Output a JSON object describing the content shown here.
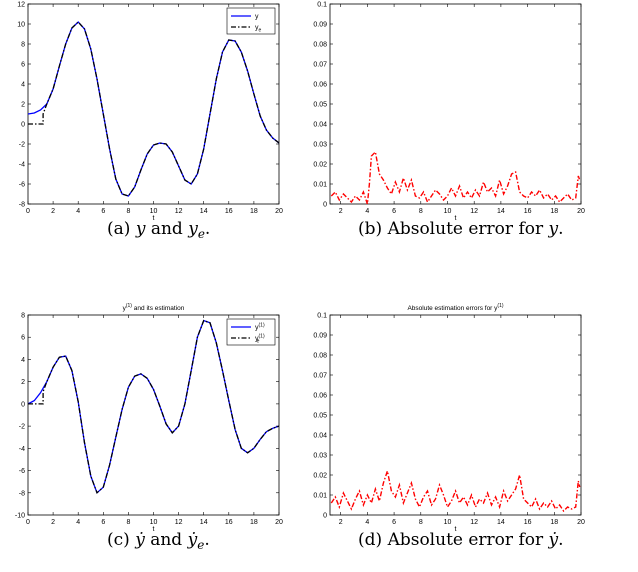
{
  "chart_data": [
    {
      "type": "line",
      "title": "",
      "xlabel": "t",
      "ylabel": "",
      "xlim": [
        0,
        20
      ],
      "ylim": [
        -8,
        12
      ],
      "xticks": [
        "0",
        "2",
        "4",
        "6",
        "8",
        "10",
        "12",
        "14",
        "16",
        "18",
        "20"
      ],
      "yticks": [
        "-8",
        "-6",
        "-4",
        "-2",
        "0",
        "2",
        "4",
        "6",
        "8",
        "10",
        "12"
      ],
      "legend": {
        "position": "top-right",
        "entries": [
          "y",
          "ye"
        ]
      },
      "series": [
        {
          "name": "y",
          "style": "solid",
          "color": "#0000ff",
          "x": [
            0,
            0.5,
            1,
            1.5,
            2,
            2.5,
            3,
            3.5,
            4,
            4.5,
            5,
            5.5,
            6,
            6.5,
            7,
            7.5,
            8,
            8.5,
            9,
            9.5,
            10,
            10.5,
            11,
            11.5,
            12,
            12.5,
            13,
            13.5,
            14,
            14.5,
            15,
            15.5,
            16,
            16.5,
            17,
            17.5,
            18,
            18.5,
            19,
            19.5,
            20
          ],
          "y": [
            1.0,
            1.1,
            1.4,
            2.0,
            3.5,
            5.8,
            8.0,
            9.6,
            10.2,
            9.5,
            7.5,
            4.5,
            1.0,
            -2.5,
            -5.5,
            -7.0,
            -7.2,
            -6.3,
            -4.6,
            -3.0,
            -2.1,
            -1.9,
            -2.0,
            -2.8,
            -4.2,
            -5.6,
            -6.0,
            -5.0,
            -2.5,
            1.0,
            4.5,
            7.2,
            8.4,
            8.3,
            7.2,
            5.3,
            3.0,
            0.8,
            -0.6,
            -1.4,
            -1.9
          ]
        },
        {
          "name": "ye",
          "style": "dashdot",
          "color": "#000000",
          "x": [
            0,
            0.5,
            1,
            1.2,
            1.2,
            1.5,
            2,
            2.5,
            3,
            3.5,
            4,
            4.5,
            5,
            5.5,
            6,
            6.5,
            7,
            7.5,
            8,
            8.5,
            9,
            9.5,
            10,
            10.5,
            11,
            11.5,
            12,
            12.5,
            13,
            13.5,
            14,
            14.5,
            15,
            15.5,
            16,
            16.5,
            17,
            17.5,
            18,
            18.5,
            19,
            19.5,
            20
          ],
          "y": [
            0,
            0,
            0,
            0,
            1.0,
            2.0,
            3.5,
            5.8,
            8.0,
            9.6,
            10.2,
            9.5,
            7.5,
            4.5,
            1.0,
            -2.5,
            -5.5,
            -7.0,
            -7.2,
            -6.3,
            -4.6,
            -3.0,
            -2.1,
            -1.9,
            -2.0,
            -2.8,
            -4.2,
            -5.6,
            -6.0,
            -5.0,
            -2.5,
            1.0,
            4.5,
            7.2,
            8.4,
            8.3,
            7.2,
            5.3,
            3.0,
            0.8,
            -0.6,
            -1.4,
            -1.9
          ]
        }
      ]
    },
    {
      "type": "line",
      "title": "",
      "xlabel": "t",
      "ylabel": "",
      "xlim": [
        1.2,
        20
      ],
      "ylim": [
        0,
        0.1
      ],
      "xticks": [
        "2",
        "4",
        "6",
        "8",
        "10",
        "12",
        "14",
        "16",
        "18",
        "20"
      ],
      "yticks": [
        "0",
        "0.01",
        "0.02",
        "0.03",
        "0.04",
        "0.05",
        "0.06",
        "0.07",
        "0.08",
        "0.09",
        "0.1"
      ],
      "series": [
        {
          "name": "",
          "style": "dashdot",
          "color": "#ff0000",
          "x": [
            1.3,
            1.6,
            1.9,
            2.2,
            2.5,
            2.8,
            3.1,
            3.4,
            3.7,
            4.0,
            4.15,
            4.3,
            4.6,
            4.9,
            5.2,
            5.5,
            5.8,
            6.1,
            6.4,
            6.7,
            7.0,
            7.3,
            7.6,
            7.9,
            8.2,
            8.5,
            8.8,
            9.1,
            9.4,
            9.7,
            10.0,
            10.3,
            10.6,
            10.9,
            11.2,
            11.5,
            11.8,
            12.1,
            12.4,
            12.7,
            13.0,
            13.3,
            13.6,
            13.9,
            14.2,
            14.5,
            14.8,
            15.1,
            15.4,
            15.7,
            16.0,
            16.3,
            16.6,
            16.9,
            17.2,
            17.5,
            17.8,
            18.1,
            18.4,
            18.7,
            19.0,
            19.3,
            19.6,
            19.8,
            19.9
          ],
          "y": [
            0.004,
            0.006,
            0.002,
            0.005,
            0.003,
            0.001,
            0.004,
            0.002,
            0.006,
            0.0,
            0.01,
            0.024,
            0.026,
            0.015,
            0.012,
            0.008,
            0.005,
            0.011,
            0.006,
            0.013,
            0.007,
            0.012,
            0.004,
            0.003,
            0.006,
            0.001,
            0.004,
            0.007,
            0.005,
            0.002,
            0.004,
            0.008,
            0.004,
            0.009,
            0.003,
            0.006,
            0.003,
            0.007,
            0.004,
            0.011,
            0.006,
            0.008,
            0.004,
            0.012,
            0.005,
            0.009,
            0.015,
            0.016,
            0.006,
            0.004,
            0.003,
            0.006,
            0.004,
            0.007,
            0.003,
            0.005,
            0.002,
            0.004,
            0.001,
            0.003,
            0.005,
            0.002,
            0.003,
            0.014,
            0.012
          ]
        }
      ]
    },
    {
      "type": "line",
      "title": "y(1) and its estimation",
      "xlabel": "t",
      "ylabel": "",
      "xlim": [
        0,
        20
      ],
      "ylim": [
        -10,
        8
      ],
      "xticks": [
        "0",
        "2",
        "4",
        "6",
        "8",
        "10",
        "12",
        "14",
        "16",
        "18",
        "20"
      ],
      "yticks": [
        "-10",
        "-8",
        "-6",
        "-4",
        "-2",
        "0",
        "2",
        "4",
        "6",
        "8"
      ],
      "legend": {
        "position": "top-right",
        "entries": [
          "y(1)",
          "ye(1)"
        ]
      },
      "series": [
        {
          "name": "y(1)",
          "style": "solid",
          "color": "#0000ff",
          "x": [
            0,
            0.5,
            1,
            1.5,
            2,
            2.5,
            3,
            3.5,
            4,
            4.5,
            5,
            5.5,
            6,
            6.5,
            7,
            7.5,
            8,
            8.5,
            9,
            9.5,
            10,
            10.5,
            11,
            11.5,
            12,
            12.5,
            13,
            13.5,
            14,
            14.5,
            15,
            15.5,
            16,
            16.5,
            17,
            17.5,
            18,
            18.5,
            19,
            19.5,
            20
          ],
          "y": [
            0,
            0.3,
            1.0,
            2.0,
            3.3,
            4.2,
            4.3,
            3.0,
            0.2,
            -3.5,
            -6.5,
            -8.0,
            -7.5,
            -5.5,
            -3.0,
            -0.5,
            1.5,
            2.5,
            2.7,
            2.3,
            1.3,
            -0.2,
            -1.8,
            -2.6,
            -2.0,
            0.0,
            3.0,
            6.0,
            7.5,
            7.3,
            5.5,
            3.0,
            0.3,
            -2.3,
            -4.0,
            -4.4,
            -4.0,
            -3.2,
            -2.5,
            -2.2,
            -2.0
          ]
        },
        {
          "name": "ye(1)",
          "style": "dashdot",
          "color": "#000000",
          "x": [
            0,
            0.5,
            1,
            1.2,
            1.2,
            1.5,
            2,
            2.5,
            3,
            3.5,
            4,
            4.5,
            5,
            5.5,
            6,
            6.5,
            7,
            7.5,
            8,
            8.5,
            9,
            9.5,
            10,
            10.5,
            11,
            11.5,
            12,
            12.5,
            13,
            13.5,
            14,
            14.5,
            15,
            15.5,
            16,
            16.5,
            17,
            17.5,
            18,
            18.5,
            19,
            19.5,
            20
          ],
          "y": [
            0,
            0,
            0,
            0,
            1.1,
            2.0,
            3.3,
            4.2,
            4.3,
            3.0,
            0.2,
            -3.5,
            -6.5,
            -8.0,
            -7.5,
            -5.5,
            -3.0,
            -0.5,
            1.5,
            2.5,
            2.7,
            2.3,
            1.3,
            -0.2,
            -1.8,
            -2.6,
            -2.0,
            0.0,
            3.0,
            6.0,
            7.5,
            7.3,
            5.5,
            3.0,
            0.3,
            -2.3,
            -4.0,
            -4.4,
            -4.0,
            -3.2,
            -2.5,
            -2.2,
            -2.0
          ]
        }
      ]
    },
    {
      "type": "line",
      "title": "Absolute estimation errors for y(1)",
      "xlabel": "t",
      "ylabel": "",
      "xlim": [
        1.2,
        20
      ],
      "ylim": [
        0,
        0.1
      ],
      "xticks": [
        "2",
        "4",
        "6",
        "8",
        "10",
        "12",
        "14",
        "16",
        "18",
        "20"
      ],
      "yticks": [
        "0",
        "0.01",
        "0.02",
        "0.03",
        "0.04",
        "0.05",
        "0.06",
        "0.07",
        "0.08",
        "0.09",
        "0.1"
      ],
      "series": [
        {
          "name": "",
          "style": "dashdot",
          "color": "#ff0000",
          "x": [
            1.3,
            1.6,
            1.9,
            2.2,
            2.5,
            2.8,
            3.1,
            3.4,
            3.7,
            4.0,
            4.3,
            4.6,
            4.9,
            5.2,
            5.5,
            5.8,
            6.1,
            6.4,
            6.7,
            7.0,
            7.3,
            7.6,
            7.9,
            8.2,
            8.5,
            8.8,
            9.1,
            9.4,
            9.7,
            10.0,
            10.3,
            10.6,
            10.9,
            11.2,
            11.5,
            11.8,
            12.1,
            12.4,
            12.7,
            13.0,
            13.3,
            13.6,
            13.9,
            14.2,
            14.5,
            14.8,
            15.1,
            15.4,
            15.7,
            16.0,
            16.3,
            16.6,
            16.9,
            17.2,
            17.5,
            17.8,
            18.1,
            18.4,
            18.7,
            19.0,
            19.3,
            19.6,
            19.8,
            19.9
          ],
          "y": [
            0.006,
            0.009,
            0.004,
            0.011,
            0.007,
            0.003,
            0.008,
            0.012,
            0.005,
            0.01,
            0.006,
            0.013,
            0.007,
            0.016,
            0.022,
            0.012,
            0.009,
            0.015,
            0.006,
            0.011,
            0.016,
            0.008,
            0.004,
            0.009,
            0.012,
            0.005,
            0.008,
            0.015,
            0.01,
            0.004,
            0.007,
            0.012,
            0.006,
            0.009,
            0.005,
            0.01,
            0.004,
            0.008,
            0.006,
            0.011,
            0.005,
            0.009,
            0.004,
            0.012,
            0.007,
            0.01,
            0.013,
            0.02,
            0.008,
            0.006,
            0.004,
            0.008,
            0.003,
            0.006,
            0.004,
            0.007,
            0.003,
            0.005,
            0.002,
            0.004,
            0.003,
            0.004,
            0.017,
            0.014
          ]
        }
      ]
    }
  ],
  "captions": {
    "a": {
      "label": "(a)",
      "v1": "y",
      "and": "and",
      "v2": "y",
      "sub2": "e",
      "end": "."
    },
    "b": {
      "label": "(b)",
      "text": "Absolute error for",
      "v1": "y",
      "end": "."
    },
    "c": {
      "label": "(c)",
      "v1": "ẏ",
      "and": "and",
      "v2": "ẏ",
      "sub2": "e",
      "end": "."
    },
    "d": {
      "label": "(d)",
      "text": "Absolute error for",
      "v1": "ẏ",
      "end": "."
    }
  }
}
